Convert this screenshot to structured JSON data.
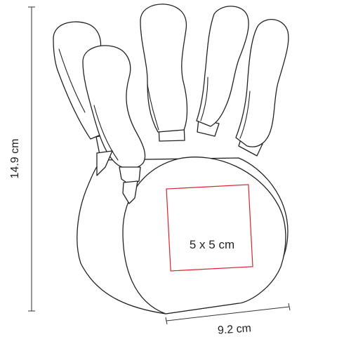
{
  "dimensions": {
    "height": "14.9 cm",
    "width": "9.2 cm",
    "print_area": "5 x 5 cm"
  },
  "colors": {
    "line": "#222222",
    "print_area": "#d9232d",
    "background": "#ffffff"
  }
}
